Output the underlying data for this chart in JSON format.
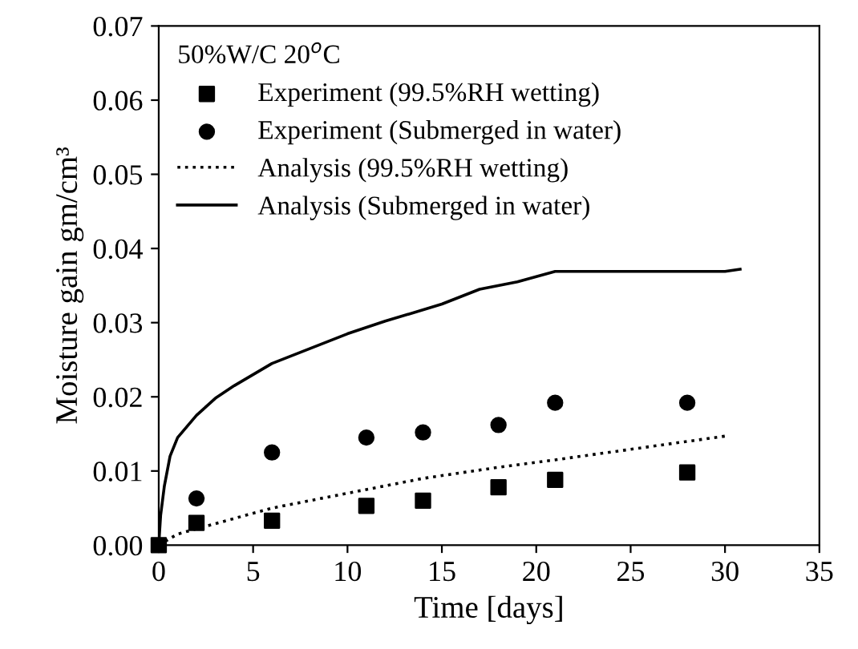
{
  "chart_data": {
    "type": "scatter",
    "xlabel": "Time [days]",
    "ylabel": "Moisture gain gm/cm³",
    "legend_title": "50%W/C 20$^{o}$C",
    "legend": "top left",
    "grid": false,
    "xlim": [
      0,
      35
    ],
    "xticks": [
      0,
      5,
      10,
      15,
      20,
      25,
      30,
      35
    ],
    "ylim": [
      0,
      0.07
    ],
    "yticks": [
      {
        "value": 0,
        "label": "0.00"
      },
      {
        "value": 0.01,
        "label": "0.01"
      },
      {
        "value": 0.02,
        "label": "0.02"
      },
      {
        "value": 0.03,
        "label": "0.03"
      },
      {
        "value": 0.04,
        "label": "0.04"
      },
      {
        "value": 0.05,
        "label": "0.05"
      },
      {
        "value": 0.06,
        "label": "0.06"
      },
      {
        "value": 0.07,
        "label": "0.07"
      }
    ],
    "series": [
      {
        "name": "Experiment (99.5%RH wetting)",
        "marker": "square",
        "color": "#000000",
        "x": [
          0,
          2,
          6,
          11,
          14,
          18,
          21,
          28
        ],
        "values": [
          0,
          0.003,
          0.0033,
          0.0053,
          0.006,
          0.0078,
          0.0088,
          0.0098
        ]
      },
      {
        "name": "Experiment (Submerged in water)",
        "marker": "circle",
        "color": "#000000",
        "x": [
          2,
          6,
          11,
          14,
          18,
          21,
          28
        ],
        "values": [
          0.0063,
          0.0125,
          0.0145,
          0.0152,
          0.0162,
          0.0192,
          0.0192
        ]
      },
      {
        "name": "Analysis (99.5%RH wetting)",
        "type": "line",
        "line_style": "dotted",
        "color": "#000000",
        "x": [
          0,
          1,
          6,
          11,
          14,
          18,
          21,
          30
        ],
        "values": [
          0,
          0.0015,
          0.005,
          0.0075,
          0.009,
          0.0105,
          0.0115,
          0.0147
        ]
      },
      {
        "name": "Analysis (Submerged in water)",
        "type": "line",
        "line_style": "solid",
        "color": "#000000",
        "x": [
          0,
          0.1,
          0.3,
          0.6,
          1,
          2,
          3,
          4,
          6,
          8,
          10,
          12,
          15,
          17,
          19,
          21,
          30,
          30.8
        ],
        "values": [
          0,
          0.004,
          0.008,
          0.012,
          0.0145,
          0.0175,
          0.0198,
          0.0215,
          0.0245,
          0.0265,
          0.0285,
          0.0302,
          0.0325,
          0.0345,
          0.0355,
          0.0369,
          0.0369,
          0.0372
        ]
      }
    ]
  }
}
